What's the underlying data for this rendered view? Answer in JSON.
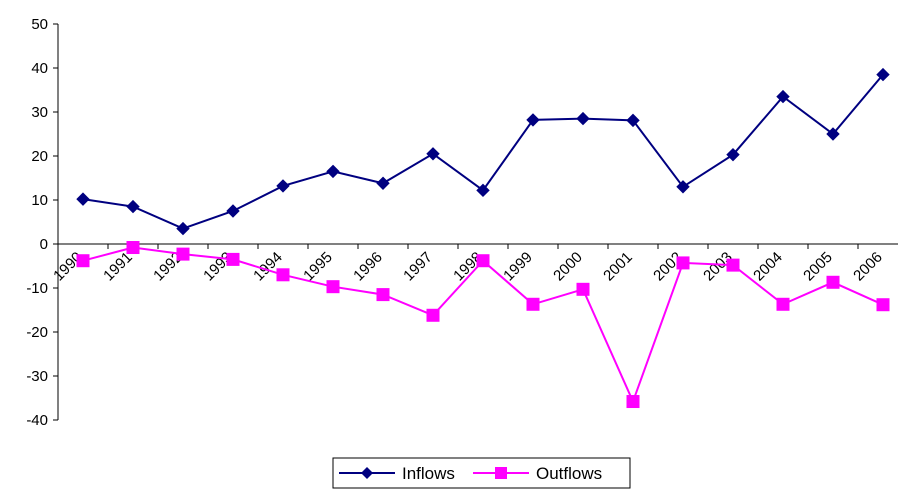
{
  "chart_data": {
    "type": "line",
    "title": "",
    "xlabel": "",
    "ylabel": "",
    "categories": [
      "1990",
      "1991",
      "1992",
      "1993",
      "1994",
      "1995",
      "1996",
      "1997",
      "1998",
      "1999",
      "2000",
      "2001",
      "2002",
      "2003",
      "2004",
      "2005",
      "2006"
    ],
    "ylim": [
      -40,
      50
    ],
    "yticks": [
      "50",
      "40",
      "30",
      "20",
      "10",
      "0",
      "-10",
      "-20",
      "-30",
      "-40"
    ],
    "grid": false,
    "legend_position": "bottom",
    "series": [
      {
        "name": "Inflows",
        "color": "#000080",
        "marker": "diamond",
        "values": [
          10.2,
          8.5,
          3.5,
          7.5,
          13.2,
          16.5,
          13.8,
          20.5,
          12.2,
          28.2,
          28.5,
          28.1,
          13.0,
          20.3,
          33.5,
          25.0,
          38.5
        ]
      },
      {
        "name": "Outflows",
        "color": "#FF00FF",
        "marker": "square",
        "values": [
          -3.8,
          -0.8,
          -2.3,
          -3.5,
          -7.0,
          -9.7,
          -11.5,
          -16.2,
          -3.8,
          -13.7,
          -10.3,
          -35.8,
          -4.3,
          -4.8,
          -13.7,
          -8.7,
          -13.8
        ]
      }
    ]
  }
}
